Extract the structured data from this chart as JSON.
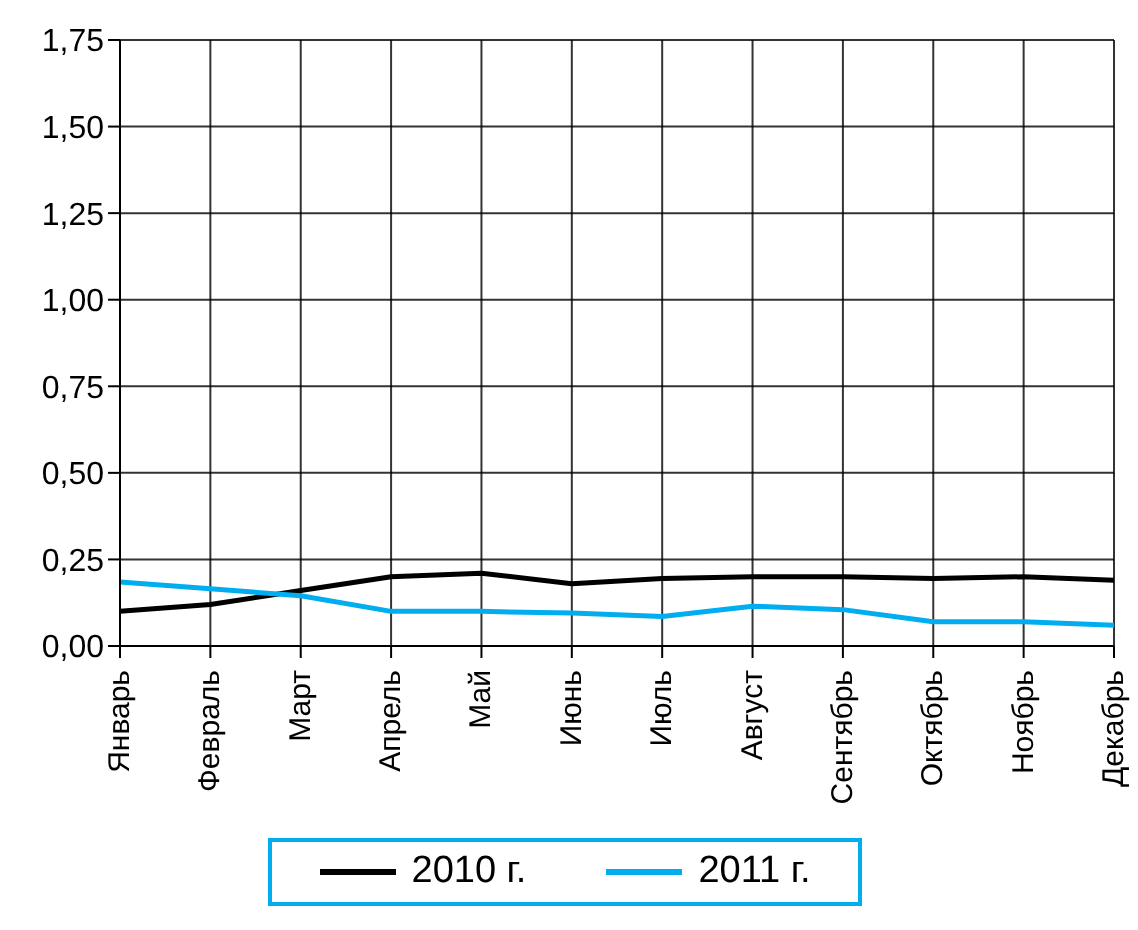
{
  "chart_data": {
    "type": "line",
    "categories": [
      "Январь",
      "Февраль",
      "Март",
      "Апрель",
      "Май",
      "Июнь",
      "Июль",
      "Август",
      "Сентябрь",
      "Октябрь",
      "Ноябрь",
      "Декабрь"
    ],
    "series": [
      {
        "name": "2010 г.",
        "color": "#000000",
        "values": [
          0.1,
          0.12,
          0.16,
          0.2,
          0.21,
          0.18,
          0.195,
          0.2,
          0.2,
          0.195,
          0.2,
          0.19
        ]
      },
      {
        "name": "2011 г.",
        "color": "#00aeef",
        "values": [
          0.185,
          0.165,
          0.145,
          0.1,
          0.1,
          0.095,
          0.085,
          0.115,
          0.105,
          0.07,
          0.07,
          0.06
        ]
      }
    ],
    "ylim": [
      0,
      1.75
    ],
    "yticks": [
      {
        "value": 0,
        "label": "0,00"
      },
      {
        "value": 0.25,
        "label": "0,25"
      },
      {
        "value": 0.5,
        "label": "0,50"
      },
      {
        "value": 0.75,
        "label": "0,75"
      },
      {
        "value": 1,
        "label": "1,00"
      },
      {
        "value": 1.25,
        "label": "1,25"
      },
      {
        "value": 1.5,
        "label": "1,50"
      },
      {
        "value": 1.75,
        "label": "1,75"
      }
    ],
    "grid": true,
    "legend": "bottom",
    "marker": "none",
    "line_style": "solid"
  }
}
